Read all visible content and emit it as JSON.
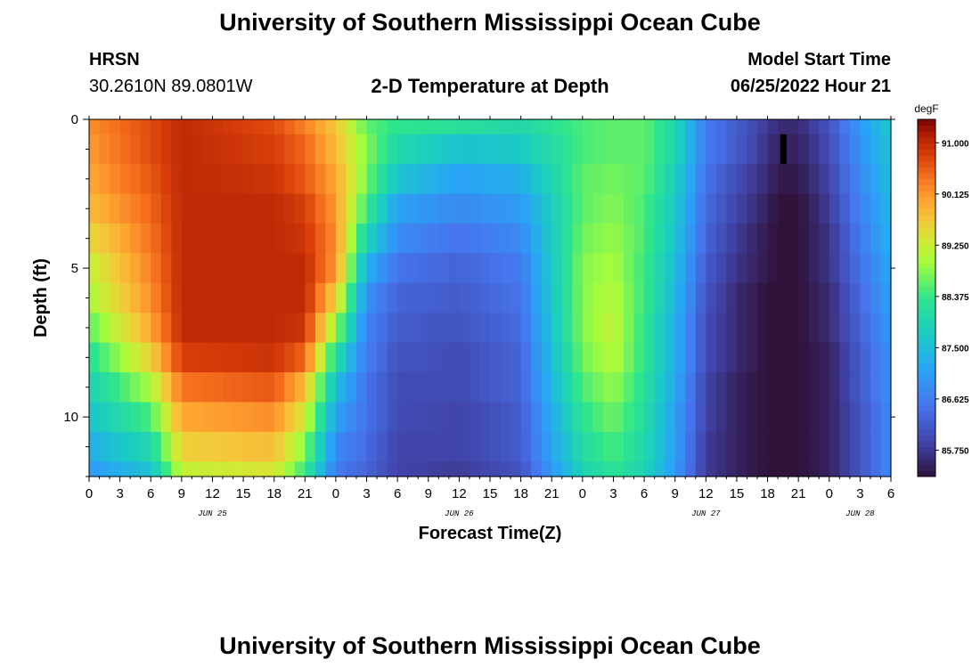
{
  "header": {
    "title": "University of Southern Mississippi Ocean Cube",
    "station": "HRSN",
    "coords": "30.2610N  89.0801W",
    "subtitle": "2-D Temperature at Depth",
    "model_start_label": "Model Start Time",
    "model_start_value": "06/25/2022 Hour 21"
  },
  "footer": {
    "title": "University of Southern Mississippi Ocean Cube"
  },
  "chart_data": {
    "type": "heatmap",
    "xlabel": "Forecast Time(Z)",
    "ylabel": "Depth (ft)",
    "colorbar_label": "degF",
    "colorbar_ticks": [
      "91.000",
      "90.125",
      "89.250",
      "88.375",
      "87.500",
      "86.625",
      "85.750"
    ],
    "colorbar_range": [
      85.3,
      91.4
    ],
    "x_ticks": [
      "0",
      "3",
      "6",
      "9",
      "12",
      "15",
      "18",
      "21",
      "0",
      "3",
      "6",
      "9",
      "12",
      "15",
      "18",
      "21",
      "0",
      "3",
      "6",
      "9",
      "12",
      "15",
      "18",
      "21",
      "0",
      "3",
      "6"
    ],
    "date_labels": [
      "JUN 25",
      "JUN 26",
      "JUN 27",
      "JUN 28"
    ],
    "y_ticks": [
      "0",
      "5",
      "10"
    ],
    "x_range_hours": [
      0,
      78
    ],
    "y_range_ft": [
      0,
      12
    ],
    "depth_levels": [
      0,
      1,
      2,
      3,
      4,
      5,
      6,
      7,
      8,
      9,
      10,
      11,
      12
    ],
    "time_profile_hours": [
      0,
      6,
      9,
      18,
      21,
      24,
      27,
      30,
      36,
      42,
      48,
      51,
      54,
      57,
      60,
      63,
      66,
      67,
      69,
      72,
      75,
      78
    ],
    "values_degF": [
      [
        90.2,
        90.7,
        91.0,
        90.7,
        90.3,
        89.7,
        88.6,
        88.3,
        88.2,
        88.0,
        88.5,
        88.6,
        88.6,
        88.0,
        86.6,
        86.2,
        85.8,
        85.6,
        85.6,
        86.1,
        87.0,
        87.7
      ],
      [
        90.1,
        90.7,
        91.0,
        90.8,
        90.5,
        89.8,
        88.8,
        88.0,
        87.6,
        87.7,
        88.5,
        88.6,
        88.6,
        88.0,
        86.6,
        86.2,
        85.7,
        85.5,
        85.5,
        86.0,
        86.9,
        87.6
      ],
      [
        90.0,
        90.6,
        91.0,
        90.9,
        90.6,
        90.0,
        88.7,
        87.6,
        87.1,
        87.3,
        88.6,
        88.7,
        88.6,
        87.8,
        86.5,
        86.0,
        85.6,
        85.4,
        85.4,
        85.9,
        86.8,
        87.5
      ],
      [
        89.8,
        90.5,
        91.0,
        91.0,
        90.8,
        90.1,
        88.4,
        87.1,
        86.8,
        87.0,
        88.6,
        88.8,
        88.5,
        87.7,
        86.4,
        85.9,
        85.5,
        85.3,
        85.3,
        85.8,
        86.7,
        87.4
      ],
      [
        89.5,
        90.4,
        91.0,
        91.0,
        90.9,
        90.2,
        87.9,
        86.8,
        86.5,
        86.8,
        88.7,
        88.9,
        88.5,
        87.6,
        86.3,
        85.8,
        85.4,
        85.3,
        85.3,
        85.7,
        86.6,
        87.3
      ],
      [
        89.2,
        90.3,
        91.0,
        91.0,
        91.0,
        90.1,
        87.3,
        86.5,
        86.3,
        86.6,
        88.8,
        89.0,
        88.4,
        87.5,
        86.2,
        85.7,
        85.4,
        85.3,
        85.3,
        85.7,
        86.5,
        87.2
      ],
      [
        89.0,
        90.2,
        91.0,
        91.0,
        91.0,
        89.6,
        86.9,
        86.3,
        86.2,
        86.5,
        88.8,
        89.1,
        88.4,
        87.4,
        86.1,
        85.6,
        85.3,
        85.3,
        85.3,
        85.6,
        86.4,
        87.1
      ],
      [
        88.6,
        90.0,
        91.0,
        91.0,
        90.9,
        88.9,
        86.7,
        86.2,
        86.1,
        86.4,
        88.8,
        89.2,
        88.3,
        87.3,
        86.0,
        85.6,
        85.3,
        85.3,
        85.3,
        85.6,
        86.3,
        87.0
      ],
      [
        88.2,
        89.6,
        90.8,
        90.9,
        90.5,
        88.1,
        86.6,
        86.1,
        86.0,
        86.3,
        88.7,
        89.1,
        88.3,
        87.3,
        86.0,
        85.6,
        85.3,
        85.3,
        85.3,
        85.5,
        86.2,
        86.9
      ],
      [
        87.9,
        89.0,
        90.4,
        90.6,
        89.8,
        87.5,
        86.5,
        86.0,
        86.0,
        86.3,
        88.5,
        88.9,
        88.2,
        87.2,
        85.9,
        85.5,
        85.3,
        85.3,
        85.3,
        85.5,
        86.2,
        86.9
      ],
      [
        87.6,
        88.5,
        90.0,
        90.2,
        89.3,
        87.1,
        86.5,
        86.0,
        85.9,
        86.2,
        88.3,
        88.7,
        88.1,
        87.1,
        85.9,
        85.5,
        85.3,
        85.3,
        85.3,
        85.5,
        86.1,
        86.8
      ],
      [
        87.3,
        88.0,
        89.6,
        89.8,
        88.8,
        86.8,
        86.4,
        85.9,
        85.9,
        86.2,
        88.1,
        88.5,
        88.0,
        87.1,
        85.8,
        85.5,
        85.3,
        85.3,
        85.3,
        85.5,
        86.1,
        86.8
      ],
      [
        87.0,
        87.6,
        89.2,
        89.4,
        88.4,
        86.6,
        86.3,
        85.9,
        85.8,
        86.1,
        87.9,
        88.3,
        87.9,
        87.0,
        85.8,
        85.5,
        85.3,
        85.3,
        85.3,
        85.5,
        86.1,
        86.8
      ]
    ],
    "marker": {
      "hour": 67.5,
      "depth_from": 0.5,
      "depth_to": 1.5,
      "color": "#000000"
    }
  }
}
